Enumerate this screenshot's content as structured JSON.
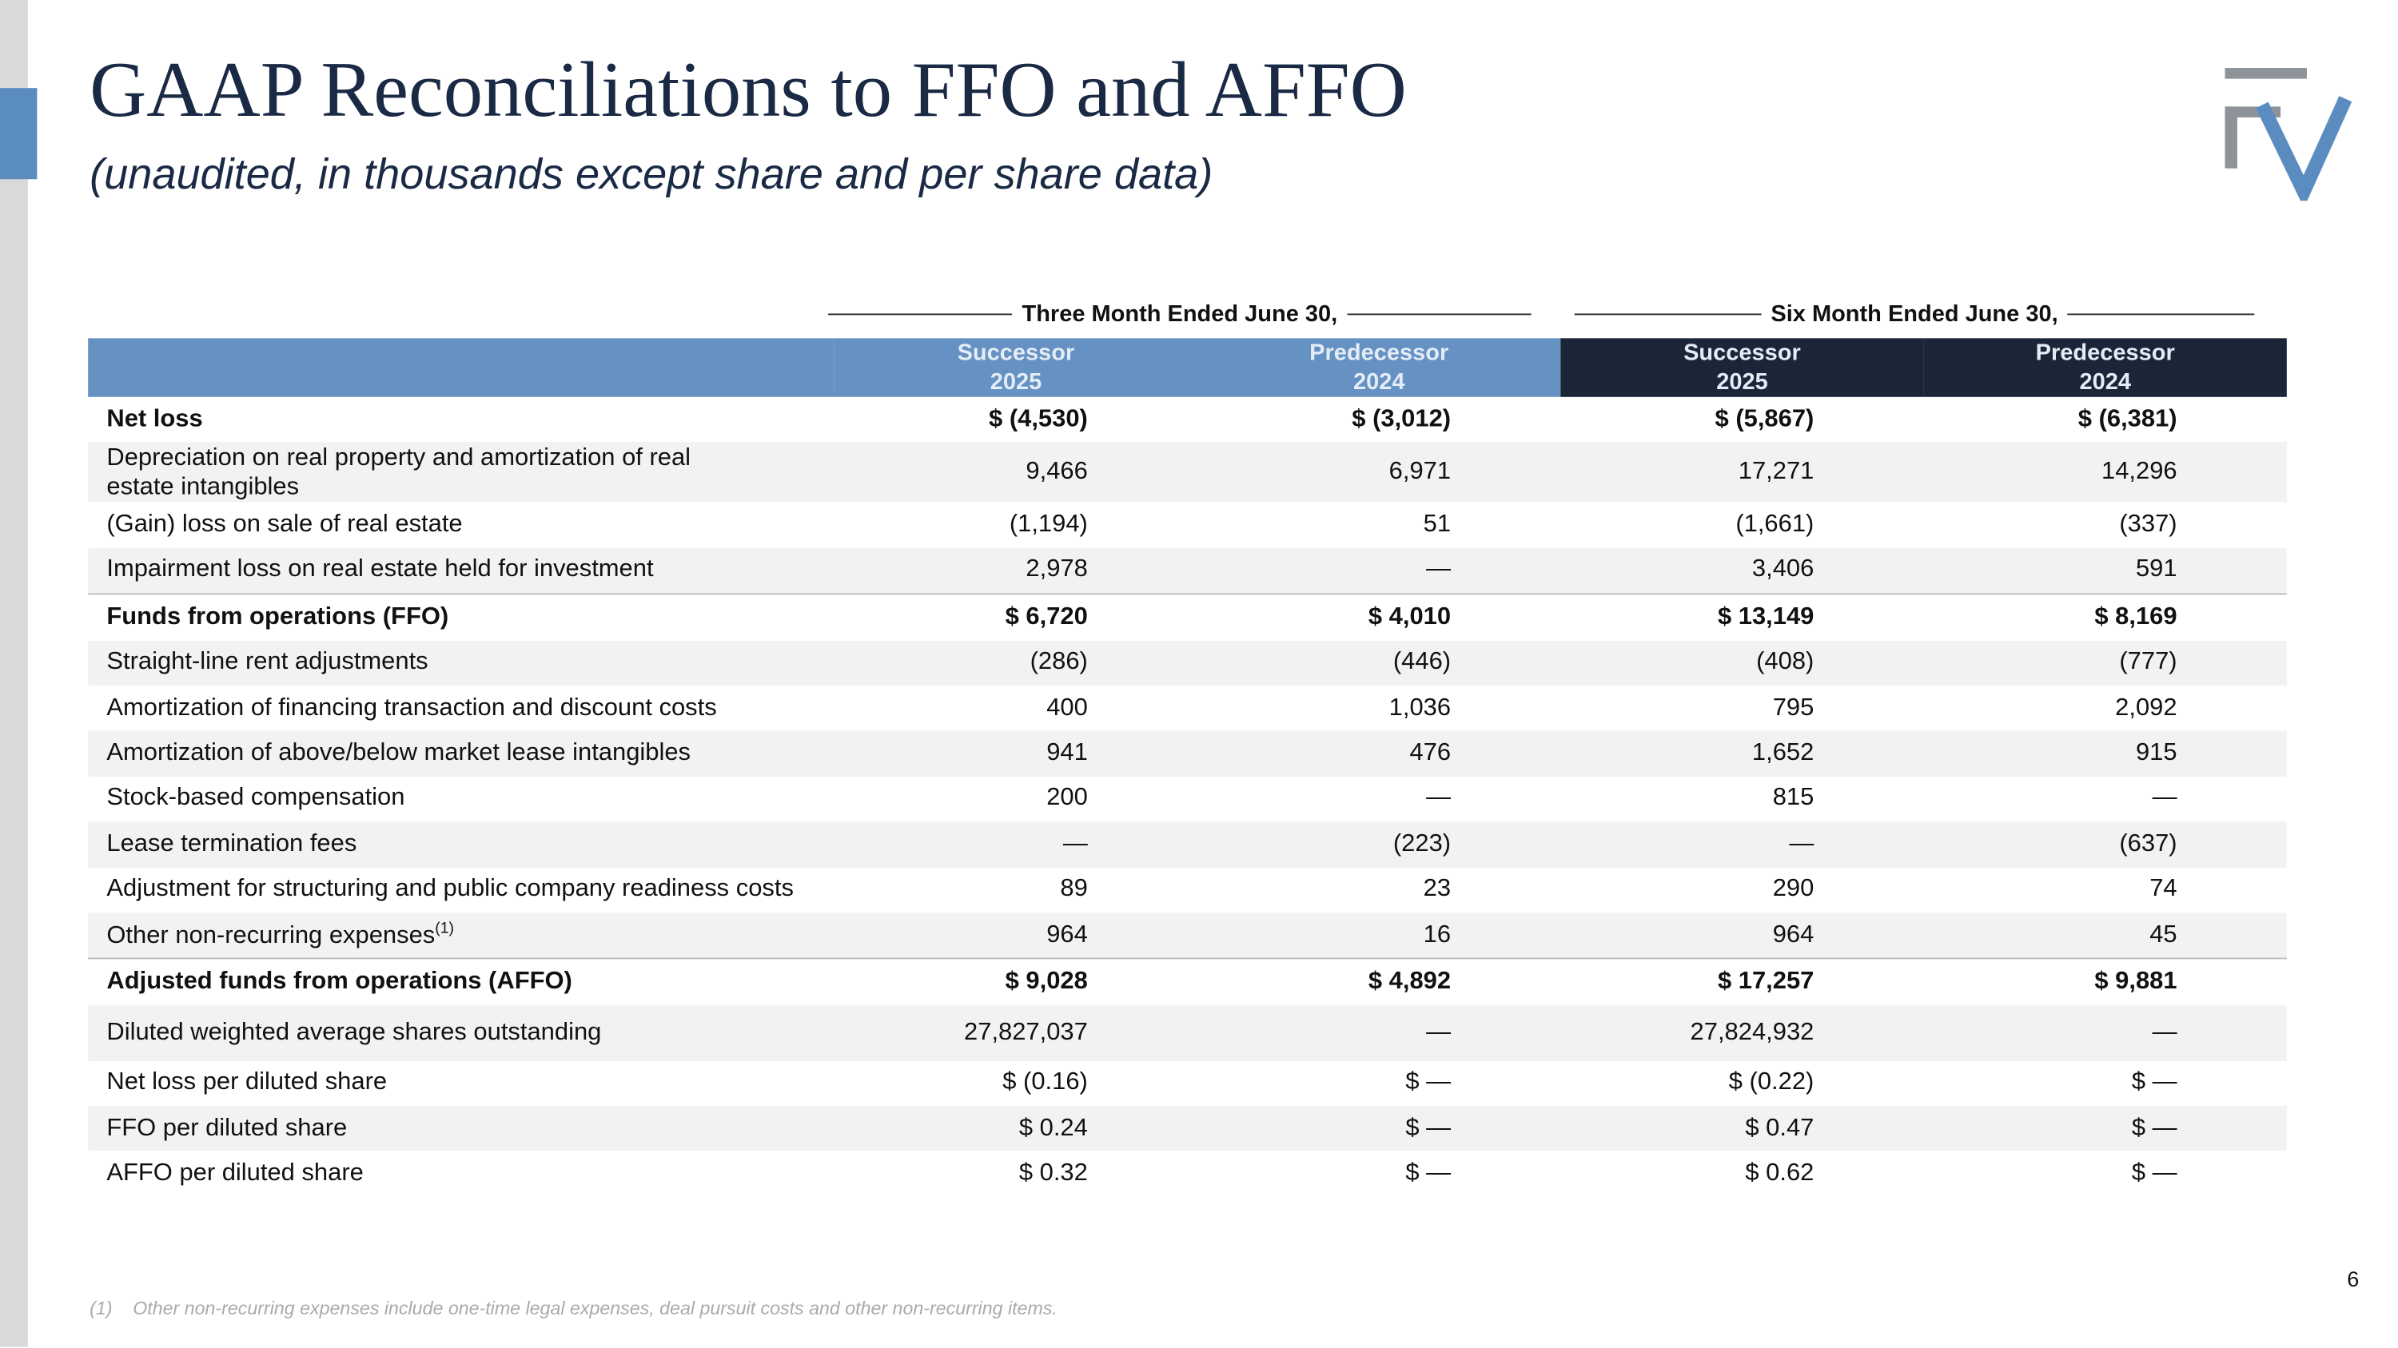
{
  "header": {
    "title": "GAAP Reconciliations to FFO and AFFO",
    "subtitle": "(unaudited, in thousands except share and per share data)"
  },
  "table": {
    "groups": [
      "Three Month Ended June 30,",
      "Six Month Ended June 30,"
    ],
    "columns": [
      {
        "label": "Successor",
        "year": "2025"
      },
      {
        "label": "Predecessor",
        "year": "2024"
      },
      {
        "label": "Successor",
        "year": "2025"
      },
      {
        "label": "Predecessor",
        "year": "2024"
      }
    ],
    "rows": [
      {
        "label": "Net loss",
        "bold": true,
        "values": [
          "$ (4,530)",
          "$ (3,012)",
          "$ (5,867)",
          "$ (6,381)"
        ]
      },
      {
        "label": [
          "Depreciation on real property and amortization of real",
          "estate intangibles"
        ],
        "values": [
          "9,466",
          "6,971",
          "17,271",
          "14,296"
        ]
      },
      {
        "label": "(Gain) loss on sale of real estate",
        "values": [
          "(1,194)",
          "51",
          "(1,661)",
          "(337)"
        ]
      },
      {
        "label": "Impairment loss on real estate held for investment",
        "values": [
          "2,978",
          "—",
          "3,406",
          "591"
        ]
      },
      {
        "label": "Funds from operations (FFO)",
        "bold": true,
        "values": [
          "$ 6,720",
          "$ 4,010",
          "$ 13,149",
          "$ 8,169"
        ]
      },
      {
        "label": "Straight-line rent adjustments",
        "values": [
          "(286)",
          "(446)",
          "(408)",
          "(777)"
        ]
      },
      {
        "label": "Amortization of financing transaction and discount costs",
        "values": [
          "400",
          "1,036",
          "795",
          "2,092"
        ]
      },
      {
        "label": "Amortization of above/below market lease intangibles",
        "values": [
          "941",
          "476",
          "1,652",
          "915"
        ]
      },
      {
        "label": "Stock-based compensation",
        "values": [
          "200",
          "—",
          "815",
          "—"
        ]
      },
      {
        "label": "Lease termination fees",
        "values": [
          "—",
          "(223)",
          "—",
          "(637)"
        ]
      },
      {
        "label": "Adjustment for structuring and public company readiness costs",
        "values": [
          "89",
          "23",
          "290",
          "74"
        ]
      },
      {
        "label": "Other non-recurring expenses",
        "note": "(1)",
        "values": [
          "964",
          "16",
          "964",
          "45"
        ]
      },
      {
        "label": "Adjusted funds from operations (AFFO)",
        "bold": true,
        "values": [
          "$ 9,028",
          "$ 4,892",
          "$ 17,257",
          "$ 9,881"
        ]
      },
      {
        "label": "Diluted weighted average shares outstanding",
        "values": [
          "27,827,037",
          "—",
          "27,824,932",
          "—"
        ]
      },
      {
        "label": "Net loss per diluted share",
        "values": [
          "$ (0.16)",
          "$ —",
          "$ (0.22)",
          "$ —"
        ]
      },
      {
        "label": "FFO per diluted share",
        "values": [
          "$ 0.24",
          "$ —",
          "$ 0.47",
          "$ —"
        ]
      },
      {
        "label": "AFFO per diluted share",
        "values": [
          "$ 0.32",
          "$ —",
          "$ 0.62",
          "$ —"
        ]
      }
    ]
  },
  "footnote": {
    "marker": "(1)",
    "text": "Other non-recurring expenses include one-time legal expenses, deal pursuit costs and other non-recurring items."
  },
  "page_number": "6"
}
